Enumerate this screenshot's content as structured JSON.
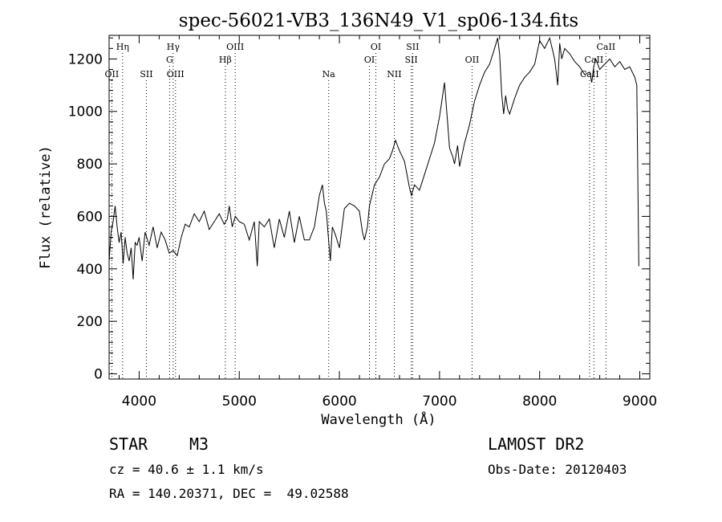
{
  "chart_data": {
    "type": "line",
    "title": "spec-56021-VB3_136N49_V1_sp06-134.fits",
    "xlabel": "Wavelength (Å)",
    "ylabel": "Flux (relative)",
    "xlim": [
      3700,
      9100
    ],
    "ylim": [
      -20,
      1290
    ],
    "x_ticks": [
      4000,
      5000,
      6000,
      7000,
      8000,
      9000
    ],
    "y_ticks": [
      0,
      200,
      400,
      600,
      800,
      1000,
      1200
    ],
    "grid": false,
    "series": [
      {
        "x": [
          3700,
          3720,
          3740,
          3760,
          3780,
          3800,
          3820,
          3840,
          3860,
          3880,
          3900,
          3920,
          3940,
          3960,
          3980,
          4000,
          4030,
          4060,
          4100,
          4140,
          4180,
          4220,
          4260,
          4300,
          4340,
          4380,
          4420,
          4460,
          4500,
          4550,
          4600,
          4650,
          4700,
          4750,
          4800,
          4850,
          4880,
          4900,
          4930,
          4960,
          5000,
          5050,
          5100,
          5150,
          5180,
          5200,
          5250,
          5300,
          5350,
          5400,
          5450,
          5500,
          5550,
          5600,
          5650,
          5700,
          5750,
          5800,
          5830,
          5850,
          5870,
          5890,
          5910,
          5930,
          5960,
          6000,
          6050,
          6100,
          6150,
          6200,
          6230,
          6250,
          6280,
          6300,
          6350,
          6400,
          6450,
          6500,
          6530,
          6560,
          6600,
          6650,
          6700,
          6720,
          6750,
          6800,
          6850,
          6900,
          6950,
          7000,
          7050,
          7080,
          7100,
          7130,
          7150,
          7180,
          7200,
          7250,
          7300,
          7350,
          7400,
          7450,
          7500,
          7550,
          7580,
          7600,
          7620,
          7640,
          7660,
          7680,
          7700,
          7750,
          7800,
          7850,
          7900,
          7950,
          8000,
          8050,
          8100,
          8150,
          8180,
          8200,
          8220,
          8250,
          8300,
          8350,
          8400,
          8450,
          8500,
          8520,
          8540,
          8560,
          8600,
          8650,
          8700,
          8750,
          8800,
          8850,
          8900,
          8950,
          8970,
          8990
        ],
        "y": [
          430,
          540,
          580,
          640,
          560,
          500,
          540,
          420,
          520,
          460,
          430,
          480,
          360,
          500,
          490,
          520,
          430,
          540,
          490,
          560,
          480,
          540,
          510,
          460,
          470,
          450,
          520,
          570,
          560,
          610,
          580,
          620,
          550,
          580,
          610,
          570,
          590,
          640,
          560,
          600,
          580,
          570,
          510,
          580,
          410,
          580,
          560,
          590,
          480,
          590,
          520,
          620,
          500,
          600,
          510,
          510,
          560,
          680,
          720,
          650,
          620,
          520,
          430,
          560,
          530,
          480,
          630,
          650,
          640,
          620,
          540,
          510,
          560,
          640,
          720,
          750,
          800,
          820,
          850,
          890,
          850,
          810,
          710,
          680,
          720,
          700,
          760,
          820,
          880,
          980,
          1110,
          960,
          860,
          830,
          800,
          870,
          790,
          880,
          950,
          1040,
          1100,
          1150,
          1180,
          1240,
          1280,
          1220,
          1070,
          990,
          1060,
          1010,
          990,
          1050,
          1100,
          1130,
          1150,
          1180,
          1270,
          1240,
          1280,
          1200,
          1100,
          1260,
          1200,
          1240,
          1220,
          1190,
          1170,
          1140,
          1150,
          1110,
          1170,
          1200,
          1160,
          1180,
          1200,
          1170,
          1190,
          1160,
          1170,
          1130,
          1100,
          410
        ]
      }
    ],
    "line_markers": [
      {
        "label": "Hη",
        "x": 3835,
        "row": 0
      },
      {
        "label": "OII",
        "x": 3727,
        "row": 2
      },
      {
        "label": "SII",
        "x": 4072,
        "row": 2
      },
      {
        "label": "Hγ",
        "x": 4340,
        "row": 0
      },
      {
        "label": "G",
        "x": 4304,
        "row": 1
      },
      {
        "label": "OIII",
        "x": 4363,
        "row": 2
      },
      {
        "label": "OIII",
        "x": 4959,
        "row": 0
      },
      {
        "label": "Hβ",
        "x": 4861,
        "row": 1
      },
      {
        "label": "Na",
        "x": 5893,
        "row": 2
      },
      {
        "label": "OI",
        "x": 6364,
        "row": 0
      },
      {
        "label": "OI",
        "x": 6300,
        "row": 1
      },
      {
        "label": "NII",
        "x": 6548,
        "row": 2
      },
      {
        "label": "SII",
        "x": 6731,
        "row": 0
      },
      {
        "label": "SII",
        "x": 6717,
        "row": 1
      },
      {
        "label": "OII",
        "x": 7325,
        "row": 1
      },
      {
        "label": "CaII",
        "x": 8662,
        "row": 0
      },
      {
        "label": "CaII",
        "x": 8542,
        "row": 1
      },
      {
        "label": "CaII",
        "x": 8498,
        "row": 2
      }
    ]
  },
  "info": {
    "class_label": "STAR",
    "subclass": "M3",
    "cz": "cz = 40.6 ± 1.1 km/s",
    "radec": "RA = 140.20371, DEC =  49.02588",
    "survey": "LAMOST DR2",
    "obs_date": "Obs-Date: 20120403"
  }
}
